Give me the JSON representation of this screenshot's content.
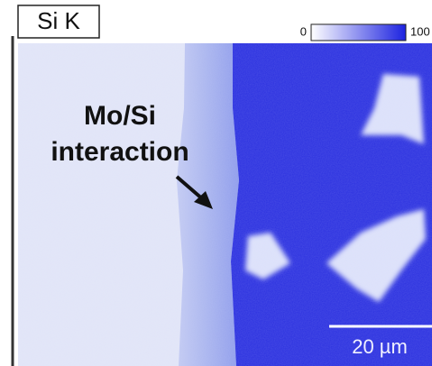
{
  "map_label": "Si K",
  "colorbar": {
    "min_label": "0",
    "max_label": "100"
  },
  "annotation": {
    "lines": [
      "Mo/Si",
      "interaction"
    ]
  },
  "scale_bar": {
    "label": "20 µm"
  }
}
